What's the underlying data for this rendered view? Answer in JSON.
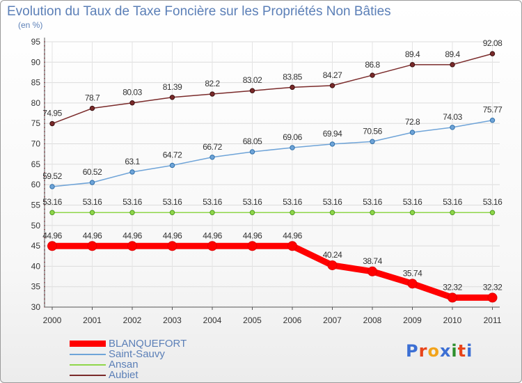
{
  "title": "Evolution du Taux de Taxe Foncière sur les Propriétés Non Bâties",
  "subtitle": "(en %)",
  "logo": {
    "text": "Proxiti",
    "colors": [
      "#3c6fd4",
      "#e8441a",
      "#f2a31b",
      "#3c6fd4",
      "#2d8f2d",
      "#e8441a",
      "#3c6fd4"
    ]
  },
  "chart_data": {
    "type": "line",
    "title": "Evolution du Taux de Taxe Foncière sur les Propriétés Non Bâties",
    "ylabel": "(en %)",
    "xlabel": "",
    "ylim": [
      30,
      95
    ],
    "yticks": [
      30,
      35,
      40,
      45,
      50,
      55,
      60,
      65,
      70,
      75,
      80,
      85,
      90,
      95
    ],
    "grid": true,
    "legend_position": "bottom-left",
    "x": [
      "2000",
      "2001",
      "2002",
      "2003",
      "2004",
      "2005",
      "2006",
      "2007",
      "2008",
      "2009",
      "2010",
      "2011"
    ],
    "series": [
      {
        "name": "BLANQUEFORT",
        "color": "#ff0000",
        "thick": true,
        "values": [
          44.96,
          44.96,
          44.96,
          44.96,
          44.96,
          44.96,
          44.96,
          40.24,
          38.74,
          35.74,
          32.32,
          32.32
        ],
        "labels": [
          "44.96",
          "44.96",
          "44.96",
          "44.96",
          "44.96",
          "44.96",
          "44.96",
          "40.24",
          "38.74",
          "35.74",
          "32.32",
          "32.32"
        ]
      },
      {
        "name": "Saint-Sauvy",
        "color": "#6fa4d8",
        "thick": false,
        "values": [
          59.52,
          60.52,
          63.1,
          64.72,
          66.72,
          68.05,
          69.06,
          69.94,
          70.56,
          72.8,
          74.03,
          75.77
        ],
        "labels": [
          "59.52",
          "60.52",
          "63.1",
          "64.72",
          "66.72",
          "68.05",
          "69.06",
          "69.94",
          "70.56",
          "72.8",
          "74.03",
          "75.77"
        ]
      },
      {
        "name": "Ansan",
        "color": "#8fd64a",
        "thick": false,
        "values": [
          53.16,
          53.16,
          53.16,
          53.16,
          53.16,
          53.16,
          53.16,
          53.16,
          53.16,
          53.16,
          53.16,
          53.16
        ],
        "labels": [
          "53.16",
          "53.16",
          "53.16",
          "53.16",
          "53.16",
          "53.16",
          "53.16",
          "53.16",
          "53.16",
          "53.16",
          "53.16",
          "53.16"
        ]
      },
      {
        "name": "Aubiet",
        "color": "#7a2a2a",
        "thick": false,
        "values": [
          74.95,
          78.7,
          80.03,
          81.39,
          82.2,
          83.02,
          83.85,
          84.27,
          86.8,
          89.4,
          89.4,
          92.08
        ],
        "labels": [
          "74.95",
          "78.7",
          "80.03",
          "81.39",
          "82.2",
          "83.02",
          "83.85",
          "84.27",
          "86.8",
          "89.4",
          "89.4",
          "92.08"
        ]
      }
    ]
  }
}
